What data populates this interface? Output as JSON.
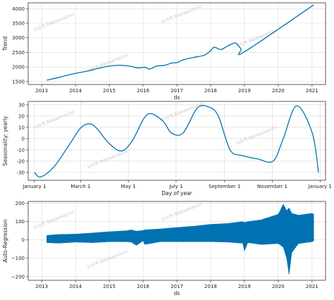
{
  "watermark": "公众号 Bdataanalysis",
  "colors": {
    "series": "#0072b2",
    "grid": "#d9d9d9"
  },
  "chart_data": [
    {
      "type": "line",
      "xlabel": "ds",
      "ylabel": "Trend",
      "grid": true,
      "xlim": [
        2012.6,
        2021.4
      ],
      "ylim": [
        1400,
        4200
      ],
      "x_ticks": [
        2013,
        2014,
        2015,
        2016,
        2017,
        2018,
        2019,
        2020,
        2021
      ],
      "x_tick_labels": [
        "2013",
        "2014",
        "2015",
        "2016",
        "2017",
        "2018",
        "2019",
        "2020",
        "2021"
      ],
      "y_ticks": [
        1500,
        2000,
        2500,
        3000,
        3500,
        4000
      ],
      "y_tick_labels": [
        "1500",
        "2000",
        "2500",
        "3000",
        "3500",
        "4000"
      ],
      "series": [
        {
          "x": [
            2013.15,
            2013.5,
            2013.9,
            2014.3,
            2014.7,
            2015.0,
            2015.3,
            2015.6,
            2015.85,
            2016.05,
            2016.2,
            2016.4,
            2016.65,
            2016.85,
            2017.0,
            2017.2,
            2017.5,
            2017.8,
            2018.0,
            2018.1,
            2018.3,
            2018.5,
            2018.65,
            2018.75,
            2018.9,
            2019.0,
            2021.05
          ],
          "y": [
            1550,
            1640,
            1760,
            1850,
            1960,
            2030,
            2060,
            2030,
            1970,
            1990,
            1930,
            2030,
            2060,
            2140,
            2150,
            2250,
            2330,
            2400,
            2560,
            2680,
            2600,
            2720,
            2800,
            2820,
            2620,
            2520,
            4130
          ]
        }
      ]
    },
    {
      "type": "line",
      "xlabel": "Day of year",
      "ylabel": "Seasonality: yearly",
      "grid": true,
      "xlim": [
        -8,
        372
      ],
      "ylim": [
        -37,
        33
      ],
      "x_ticks": [
        0,
        59,
        120,
        181,
        243,
        304,
        365
      ],
      "x_tick_labels": [
        "January 1",
        "March 1",
        "May 1",
        "July 1",
        "September 1",
        "November 1",
        "January 1"
      ],
      "y_ticks": [
        -30,
        -20,
        -10,
        0,
        10,
        20,
        30
      ],
      "y_tick_labels": [
        "-30",
        "-20",
        "-10",
        "0",
        "10",
        "20",
        "30"
      ],
      "series": [
        {
          "x": [
            0,
            8,
            25,
            45,
            60,
            75,
            95,
            111,
            125,
            140,
            150,
            165,
            175,
            190,
            208,
            223,
            235,
            250,
            265,
            285,
            305,
            318,
            335,
            355,
            363
          ],
          "y": [
            -30,
            -34,
            -25,
            -5,
            10,
            12,
            -4,
            -11,
            -2,
            18,
            22,
            15,
            5,
            5,
            27,
            28,
            20,
            -10,
            -15,
            -18,
            -20,
            0,
            29,
            5,
            -30
          ]
        }
      ]
    },
    {
      "type": "area",
      "xlabel": "ds",
      "ylabel": "Auto-Regression",
      "grid": true,
      "xlim": [
        2012.6,
        2021.4
      ],
      "ylim": [
        -220,
        210
      ],
      "x_ticks": [
        2013,
        2014,
        2015,
        2016,
        2017,
        2018,
        2019,
        2020,
        2021
      ],
      "x_tick_labels": [
        "2013",
        "2014",
        "2015",
        "2016",
        "2017",
        "2018",
        "2019",
        "2020",
        "2021"
      ],
      "y_ticks": [
        -200,
        -100,
        0,
        100,
        200
      ],
      "y_tick_labels": [
        "−200",
        "−100",
        "0",
        "100",
        "200"
      ],
      "series": [
        {
          "x": [
            2013.15,
            2013.5,
            2014.0,
            2014.5,
            2015.0,
            2015.5,
            2015.65,
            2015.8,
            2016.0,
            2016.05,
            2016.5,
            2017.0,
            2017.5,
            2018.0,
            2018.5,
            2018.95,
            2019.0,
            2019.1,
            2019.5,
            2020.0,
            2020.15,
            2020.25,
            2020.32,
            2020.4,
            2020.6,
            2021.0,
            2021.05
          ],
          "upper": [
            25,
            30,
            32,
            38,
            45,
            50,
            55,
            48,
            52,
            55,
            60,
            68,
            75,
            85,
            90,
            100,
            95,
            100,
            110,
            140,
            195,
            160,
            175,
            145,
            135,
            145,
            140
          ],
          "lower": [
            -15,
            -18,
            -12,
            -15,
            -10,
            -10,
            -12,
            -30,
            -5,
            -25,
            -10,
            -10,
            -10,
            -10,
            -12,
            -18,
            -60,
            -15,
            -25,
            -20,
            -40,
            -100,
            -190,
            -70,
            -20,
            -10,
            -5
          ]
        }
      ]
    }
  ]
}
